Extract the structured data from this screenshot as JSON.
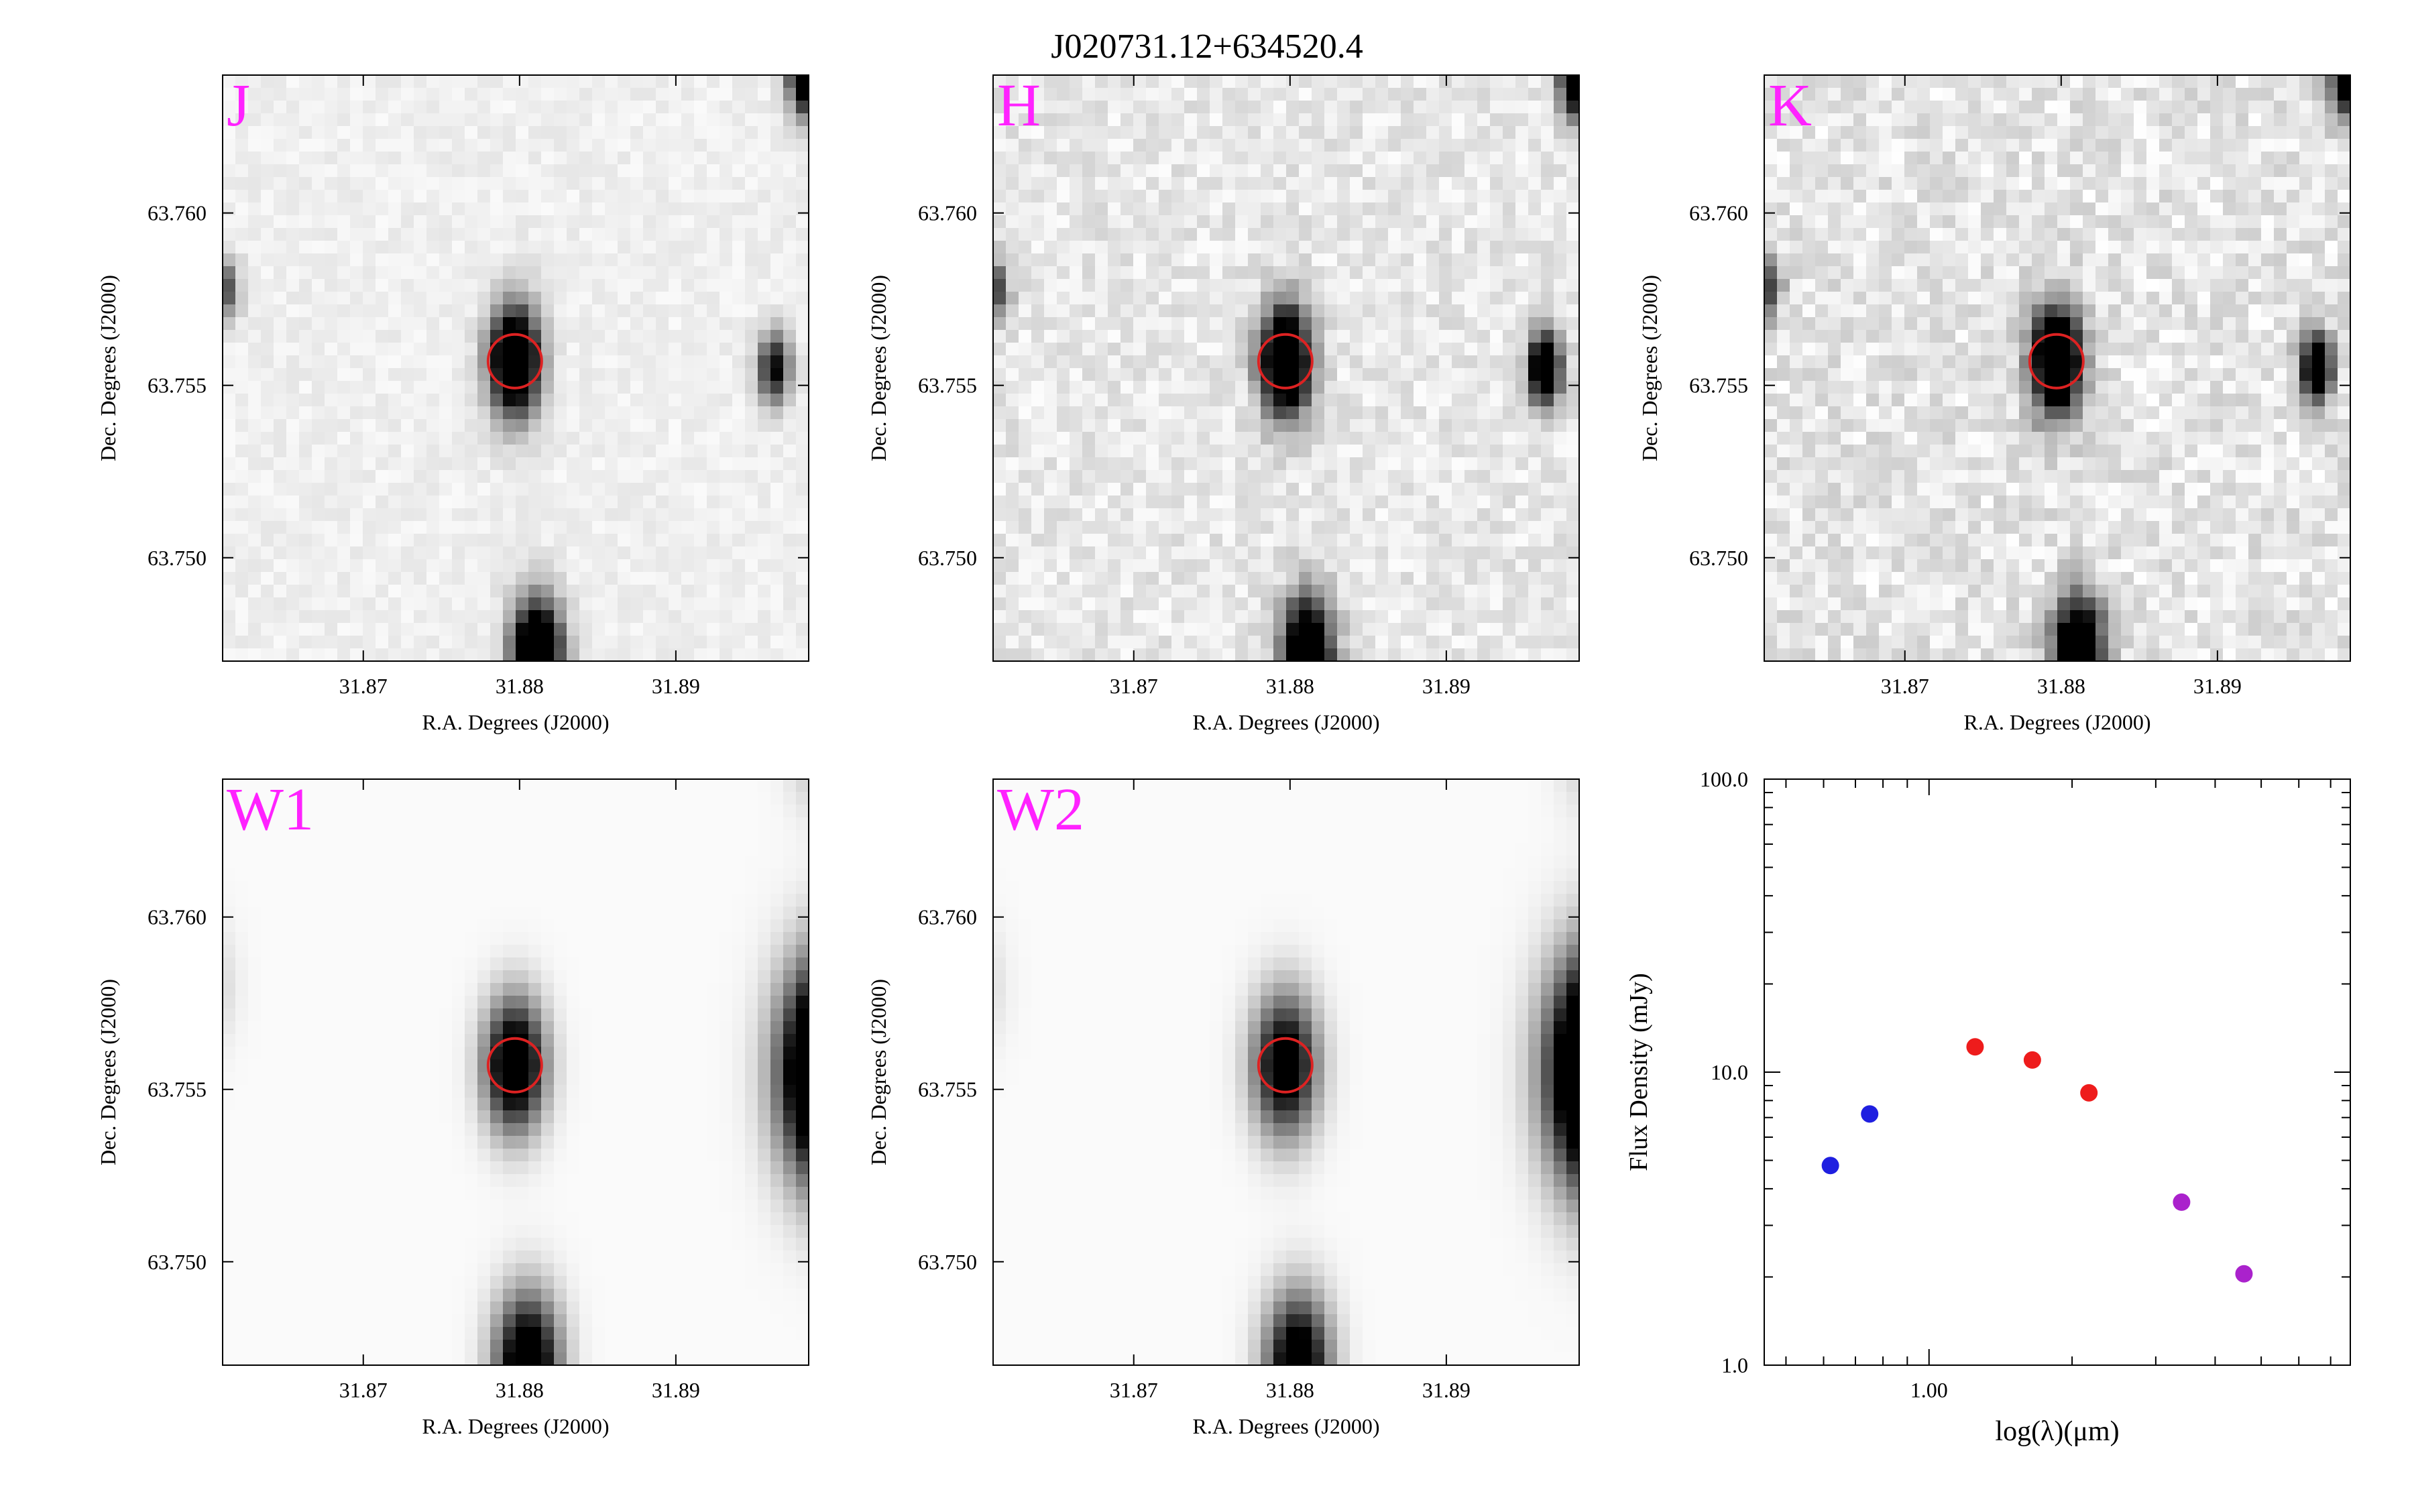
{
  "figure": {
    "title": "J020731.12+634520.4"
  },
  "image_panels": [
    {
      "band": "J",
      "xlabel": "R.A. Degrees (J2000)",
      "ylabel": "Dec. Degrees (J2000)",
      "xticks": [
        "31.87",
        "31.88",
        "31.89"
      ],
      "yticks": [
        "63.760",
        "63.755",
        "63.750"
      ]
    },
    {
      "band": "H",
      "xlabel": "R.A. Degrees (J2000)",
      "ylabel": "Dec. Degrees (J2000)",
      "xticks": [
        "31.87",
        "31.88",
        "31.89"
      ],
      "yticks": [
        "63.760",
        "63.755",
        "63.750"
      ]
    },
    {
      "band": "K",
      "xlabel": "R.A. Degrees (J2000)",
      "ylabel": "Dec. Degrees (J2000)",
      "xticks": [
        "31.87",
        "31.88",
        "31.89"
      ],
      "yticks": [
        "63.760",
        "63.755",
        "63.750"
      ]
    },
    {
      "band": "W1",
      "xlabel": "R.A. Degrees (J2000)",
      "ylabel": "Dec. Degrees (J2000)",
      "xticks": [
        "31.87",
        "31.88",
        "31.89"
      ],
      "yticks": [
        "63.760",
        "63.755",
        "63.750"
      ]
    },
    {
      "band": "W2",
      "xlabel": "R.A. Degrees (J2000)",
      "ylabel": "Dec. Degrees (J2000)",
      "xticks": [
        "31.87",
        "31.88",
        "31.89"
      ],
      "yticks": [
        "63.760",
        "63.755",
        "63.750"
      ]
    }
  ],
  "chart_data": [
    {
      "type": "heatmap",
      "band": "J",
      "xlim": [
        31.861,
        31.8985
      ],
      "ylim": [
        63.747,
        63.764
      ],
      "target": {
        "ra": 31.8797,
        "dec": 63.7557
      },
      "sources": [
        {
          "ra": 31.8797,
          "dec": 63.7557,
          "peak": 1.0,
          "sigma": 0.0011
        },
        {
          "ra": 31.8811,
          "dec": 63.7472,
          "peak": 1.0,
          "sigma": 0.0011
        },
        {
          "ra": 31.8963,
          "dec": 63.7555,
          "peak": 0.6,
          "sigma": 0.0007
        },
        {
          "ra": 31.8984,
          "dec": 63.764,
          "peak": 0.9,
          "sigma": 0.0008
        },
        {
          "ra": 31.8612,
          "dec": 63.7578,
          "peak": 0.4,
          "sigma": 0.0006
        }
      ],
      "background": 0.06,
      "noise": 0.04,
      "colors": {
        "target_circle": "#dd2222",
        "band_label": "#ff22ff"
      }
    },
    {
      "type": "heatmap",
      "band": "H",
      "xlim": [
        31.861,
        31.8985
      ],
      "ylim": [
        63.747,
        63.764
      ],
      "target": {
        "ra": 31.8797,
        "dec": 63.7557
      },
      "sources": [
        {
          "ra": 31.8797,
          "dec": 63.7557,
          "peak": 1.0,
          "sigma": 0.0011
        },
        {
          "ra": 31.8811,
          "dec": 63.7472,
          "peak": 1.0,
          "sigma": 0.0011
        },
        {
          "ra": 31.8963,
          "dec": 63.7555,
          "peak": 0.9,
          "sigma": 0.0007
        },
        {
          "ra": 31.8984,
          "dec": 63.764,
          "peak": 0.9,
          "sigma": 0.0008
        },
        {
          "ra": 31.8612,
          "dec": 63.7578,
          "peak": 0.4,
          "sigma": 0.0006
        }
      ],
      "background": 0.09,
      "noise": 0.08,
      "colors": {
        "target_circle": "#dd2222",
        "band_label": "#ff22ff"
      }
    },
    {
      "type": "heatmap",
      "band": "K",
      "xlim": [
        31.861,
        31.8985
      ],
      "ylim": [
        63.747,
        63.764
      ],
      "target": {
        "ra": 31.8797,
        "dec": 63.7557
      },
      "sources": [
        {
          "ra": 31.8797,
          "dec": 63.7557,
          "peak": 1.0,
          "sigma": 0.0011
        },
        {
          "ra": 31.8811,
          "dec": 63.7472,
          "peak": 1.0,
          "sigma": 0.0011
        },
        {
          "ra": 31.8963,
          "dec": 63.7555,
          "peak": 0.8,
          "sigma": 0.0007
        },
        {
          "ra": 31.8984,
          "dec": 63.764,
          "peak": 0.9,
          "sigma": 0.0008
        },
        {
          "ra": 31.8612,
          "dec": 63.7578,
          "peak": 0.4,
          "sigma": 0.0006
        }
      ],
      "background": 0.1,
      "noise": 0.1,
      "colors": {
        "target_circle": "#dd2222",
        "band_label": "#ff22ff"
      }
    },
    {
      "type": "heatmap",
      "band": "W1",
      "xlim": [
        31.861,
        31.8985
      ],
      "ylim": [
        63.747,
        63.764
      ],
      "target": {
        "ra": 31.8797,
        "dec": 63.7557
      },
      "sources": [
        {
          "ra": 31.8797,
          "dec": 63.7557,
          "peak": 0.85,
          "sigma": 0.0013
        },
        {
          "ra": 31.8805,
          "dec": 63.747,
          "peak": 0.85,
          "sigma": 0.0014
        },
        {
          "ra": 31.9,
          "dec": 63.7555,
          "peak": 1.4,
          "sigma": 0.0021
        },
        {
          "ra": 31.899,
          "dec": 63.765,
          "peak": 0.15,
          "sigma": 0.0013
        },
        {
          "ra": 31.86,
          "dec": 63.758,
          "peak": 0.12,
          "sigma": 0.0012
        }
      ],
      "background": 0.02,
      "noise": 0.0,
      "colors": {
        "target_circle": "#dd2222",
        "band_label": "#ff22ff"
      }
    },
    {
      "type": "heatmap",
      "band": "W2",
      "xlim": [
        31.861,
        31.8985
      ],
      "ylim": [
        63.747,
        63.764
      ],
      "target": {
        "ra": 31.8797,
        "dec": 63.7557
      },
      "sources": [
        {
          "ra": 31.8797,
          "dec": 63.7557,
          "peak": 0.75,
          "sigma": 0.0014
        },
        {
          "ra": 31.8805,
          "dec": 63.747,
          "peak": 0.8,
          "sigma": 0.0014
        },
        {
          "ra": 31.9,
          "dec": 63.7555,
          "peak": 1.5,
          "sigma": 0.0022
        },
        {
          "ra": 31.899,
          "dec": 63.765,
          "peak": 0.12,
          "sigma": 0.0013
        },
        {
          "ra": 31.86,
          "dec": 63.758,
          "peak": 0.1,
          "sigma": 0.0012
        }
      ],
      "background": 0.02,
      "noise": 0.0,
      "colors": {
        "target_circle": "#dd2222",
        "band_label": "#ff22ff"
      }
    },
    {
      "type": "scatter",
      "xscale": "log",
      "yscale": "log",
      "xlabel": "log(λ)(μm)",
      "ylabel": "Flux Density (mJy)",
      "xlim": [
        0.45,
        7.7
      ],
      "ylim": [
        1.0,
        100.0
      ],
      "xtick_labels": [
        {
          "value": 1.0,
          "label": "1.00"
        }
      ],
      "ytick_labels": [
        {
          "value": 1.0,
          "label": "1.0"
        },
        {
          "value": 10.0,
          "label": "10.0"
        },
        {
          "value": 100.0,
          "label": "100.0"
        }
      ],
      "grid": false,
      "points": [
        {
          "x": 0.62,
          "y": 4.8,
          "color": "#1f1fe0"
        },
        {
          "x": 0.75,
          "y": 7.2,
          "color": "#1f1fe0"
        },
        {
          "x": 1.25,
          "y": 12.2,
          "color": "#ee1c1c"
        },
        {
          "x": 1.65,
          "y": 11.0,
          "color": "#ee1c1c"
        },
        {
          "x": 2.17,
          "y": 8.5,
          "color": "#ee1c1c"
        },
        {
          "x": 3.4,
          "y": 3.6,
          "color": "#aa22cc"
        },
        {
          "x": 4.6,
          "y": 2.05,
          "color": "#aa22cc"
        }
      ]
    }
  ]
}
